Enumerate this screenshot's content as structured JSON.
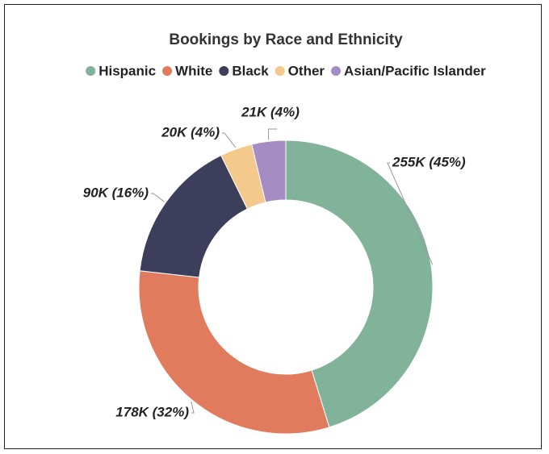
{
  "chart_data": {
    "type": "donut",
    "title": "Bookings by Race and Ethnicity",
    "categories": [
      "Hispanic",
      "White",
      "Black",
      "Other",
      "Asian/Pacific Islander"
    ],
    "values": [
      255000,
      178000,
      90000,
      20000,
      21000
    ],
    "value_labels": [
      "255K (45%)",
      "178K (32%)",
      "90K (16%)",
      "20K (4%)",
      "21K (4%)"
    ],
    "colors": [
      "#80b39a",
      "#e07b5e",
      "#3c3e5b",
      "#f4c98c",
      "#a58dc3"
    ],
    "legend": "top"
  }
}
